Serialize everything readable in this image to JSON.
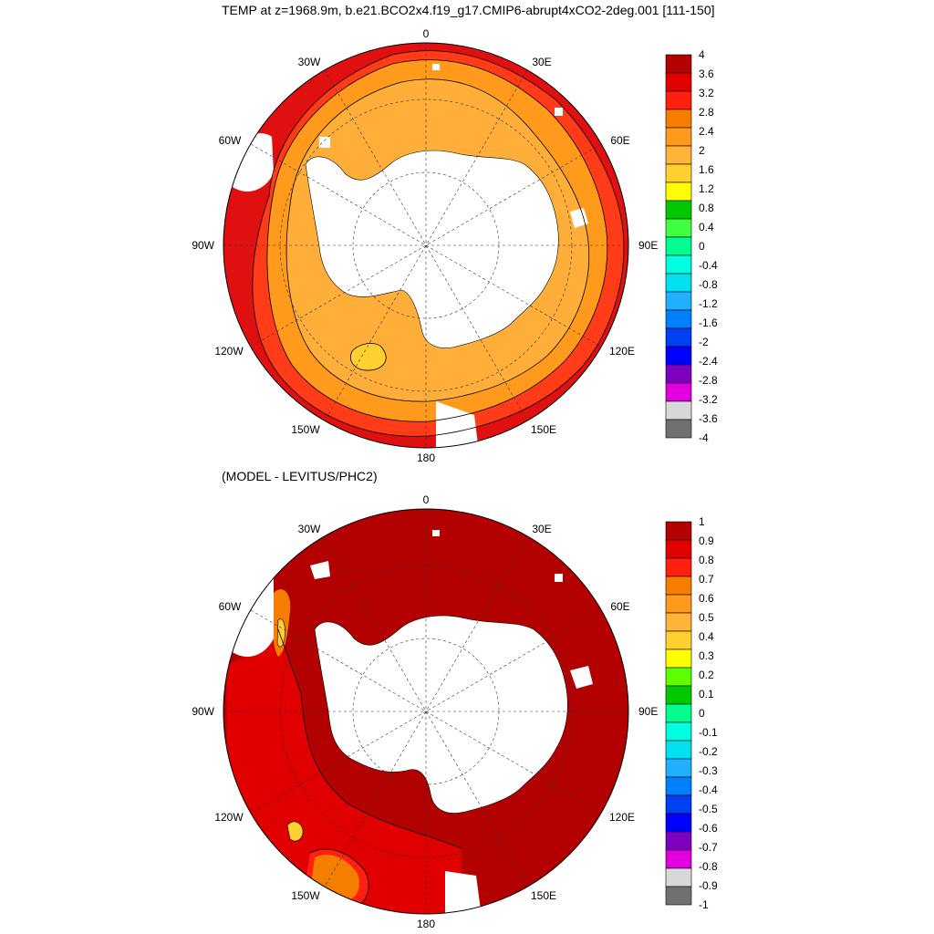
{
  "title": "TEMP at z=1968.9m, b.e21.BCO2x4.f19_g17.CMIP6-abrupt4xCO2-2deg.001 [111-150]",
  "subtitle": "(MODEL - LEVITUS/PHC2)",
  "longitude_labels": {
    "n": "0",
    "ne30": "30E",
    "ne60": "60E",
    "e90": "90E",
    "se120": "120E",
    "se150": "150E",
    "s": "180",
    "sw150": "150W",
    "sw120": "120W",
    "w90": "90W",
    "nw60": "60W",
    "nw30": "30W"
  },
  "colorbar_top": {
    "labels": [
      "4",
      "3.6",
      "3.2",
      "2.8",
      "2.4",
      "2",
      "1.6",
      "1.2",
      "0.8",
      "0.4",
      "0",
      "-0.4",
      "-0.8",
      "-1.2",
      "-1.6",
      "-2",
      "-2.4",
      "-2.8",
      "-3.2",
      "-3.6",
      "-4"
    ],
    "colors": [
      "#b30000",
      "#e00000",
      "#ff2010",
      "#f57d00",
      "#ff9a1c",
      "#ffb43a",
      "#ffd030",
      "#ffff00",
      "#00c800",
      "#40ff40",
      "#00ff90",
      "#00ffe0",
      "#00e0f0",
      "#20b0ff",
      "#0080ff",
      "#0040f0",
      "#0000ff",
      "#8000c0",
      "#e000e0",
      "#d8d8d8",
      "#707070"
    ]
  },
  "colorbar_bottom": {
    "labels": [
      "1",
      "0.9",
      "0.8",
      "0.7",
      "0.6",
      "0.5",
      "0.4",
      "0.3",
      "0.2",
      "0.1",
      "0",
      "-0.1",
      "-0.2",
      "-0.3",
      "-0.4",
      "-0.5",
      "-0.6",
      "-0.7",
      "-0.8",
      "-0.9",
      "-1"
    ],
    "colors": [
      "#b30000",
      "#e00000",
      "#ff2010",
      "#f57d00",
      "#ff9a1c",
      "#ffb43a",
      "#ffd030",
      "#ffff00",
      "#60ff00",
      "#00c800",
      "#00ff90",
      "#00ffe0",
      "#00e0f0",
      "#20b0ff",
      "#0080ff",
      "#0040f0",
      "#0000ff",
      "#8000c0",
      "#e000e0",
      "#d8d8d8",
      "#707070"
    ]
  },
  "map_colors": {
    "land": "#ffffff",
    "top_inner": "#ffae3a",
    "top_mid": "#ff9a1c",
    "top_outer": "#ff3b18",
    "top_edge": "#e01010",
    "top_patch": "#ffd030",
    "bottom_main": "#b30000",
    "bottom_band": "#e00000",
    "bottom_warm": "#ff2010",
    "bottom_orange": "#f57d00",
    "bottom_yellow": "#ffd030"
  }
}
